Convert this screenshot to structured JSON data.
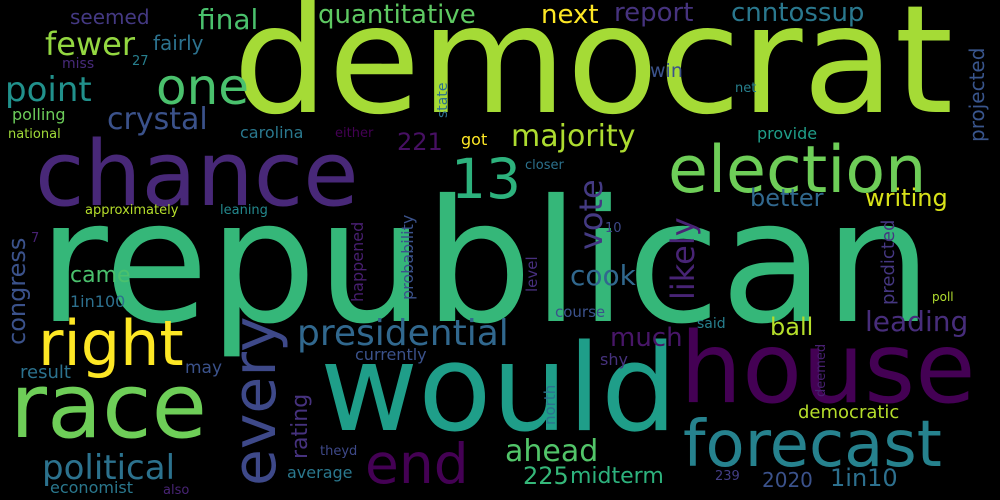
{
  "background": "#000000",
  "palette": "viridis",
  "words": [
    {
      "key": "democrat",
      "text": "democrat",
      "color": "#a5db36"
    },
    {
      "key": "republican",
      "text": "republican",
      "color": "#35b779"
    },
    {
      "key": "chance",
      "text": "chance",
      "color": "#482878"
    },
    {
      "key": "would",
      "text": "would",
      "color": "#1f9e89"
    },
    {
      "key": "house",
      "text": "house",
      "color": "#440154"
    },
    {
      "key": "race",
      "text": "race",
      "color": "#6ece58"
    },
    {
      "key": "election",
      "text": "election",
      "color": "#6ece58"
    },
    {
      "key": "forecast",
      "text": "forecast",
      "color": "#26828e"
    },
    {
      "key": "every",
      "text": "every",
      "color": "#3e4989"
    },
    {
      "key": "right",
      "text": "right",
      "color": "#fde725"
    },
    {
      "key": "one",
      "text": "one",
      "color": "#4ac16d"
    },
    {
      "key": "n13",
      "text": "13",
      "color": "#2db27d"
    },
    {
      "key": "end",
      "text": "end",
      "color": "#440154"
    },
    {
      "key": "presidential",
      "text": "presidential",
      "color": "#31688e"
    },
    {
      "key": "political",
      "text": "political",
      "color": "#2c728e"
    },
    {
      "key": "majority",
      "text": "majority",
      "color": "#addc30"
    },
    {
      "key": "point",
      "text": "point",
      "color": "#21918c"
    },
    {
      "key": "fewer",
      "text": "fewer",
      "color": "#93d741"
    },
    {
      "key": "crystal",
      "text": "crystal",
      "color": "#3b528b"
    },
    {
      "key": "ahead",
      "text": "ahead",
      "color": "#52c569"
    },
    {
      "key": "leading",
      "text": "leading",
      "color": "#472d7b"
    },
    {
      "key": "vote",
      "text": "vote",
      "color": "#443a83"
    },
    {
      "key": "likely",
      "text": "likely",
      "color": "#482475"
    },
    {
      "key": "quantitative",
      "text": "quantitative",
      "color": "#5ec962"
    },
    {
      "key": "next",
      "text": "next",
      "color": "#fde725"
    },
    {
      "key": "report",
      "text": "report",
      "color": "#46337e"
    },
    {
      "key": "cnntossup",
      "text": "cnntossup",
      "color": "#2a788e"
    },
    {
      "key": "final",
      "text": "final",
      "color": "#4ac16d"
    },
    {
      "key": "seemed",
      "text": "seemed",
      "color": "#443983"
    },
    {
      "key": "fairly",
      "text": "fairly",
      "color": "#2c728e"
    },
    {
      "key": "n27",
      "text": "27",
      "color": "#277f8e"
    },
    {
      "key": "miss",
      "text": "miss",
      "color": "#472a7a"
    },
    {
      "key": "polling",
      "text": "polling",
      "color": "#6ccd5a"
    },
    {
      "key": "national",
      "text": "national",
      "color": "#a0da39"
    },
    {
      "key": "carolina",
      "text": "carolina",
      "color": "#2a788e"
    },
    {
      "key": "either",
      "text": "either",
      "color": "#440154"
    },
    {
      "key": "state",
      "text": "state",
      "color": "#2d708e"
    },
    {
      "key": "projected",
      "text": "projected",
      "color": "#39558c"
    },
    {
      "key": "win",
      "text": "win",
      "color": "#3b528b"
    },
    {
      "key": "net",
      "text": "net",
      "color": "#27808e"
    },
    {
      "key": "provide",
      "text": "provide",
      "color": "#1f9e89"
    },
    {
      "key": "n221",
      "text": "221",
      "color": "#471063"
    },
    {
      "key": "got",
      "text": "got",
      "color": "#fde725"
    },
    {
      "key": "closer",
      "text": "closer",
      "color": "#2c728e"
    },
    {
      "key": "approximately",
      "text": "approximately",
      "color": "#b5de2b"
    },
    {
      "key": "leaning",
      "text": "leaning",
      "color": "#23898e"
    },
    {
      "key": "congress",
      "text": "congress",
      "color": "#3b528b"
    },
    {
      "key": "better",
      "text": "better",
      "color": "#31688e"
    },
    {
      "key": "writing",
      "text": "writing",
      "color": "#d8e219"
    },
    {
      "key": "n7",
      "text": "7",
      "color": "#482173"
    },
    {
      "key": "n10",
      "text": "10",
      "color": "#3e4989"
    },
    {
      "key": "probability",
      "text": "probability",
      "color": "#3b528b"
    },
    {
      "key": "happened",
      "text": "happened",
      "color": "#481f70"
    },
    {
      "key": "level",
      "text": "level",
      "color": "#472f7d"
    },
    {
      "key": "predicted",
      "text": "predicted",
      "color": "#453781"
    },
    {
      "key": "poll",
      "text": "poll",
      "color": "#b0dd2f"
    },
    {
      "key": "came",
      "text": "came",
      "color": "#4ac16d"
    },
    {
      "key": "cook",
      "text": "cook",
      "color": "#31688e"
    },
    {
      "key": "in1in100",
      "text": "1in100",
      "color": "#2d708e"
    },
    {
      "key": "rating",
      "text": "rating",
      "color": "#46327e"
    },
    {
      "key": "much",
      "text": "much",
      "color": "#481668"
    },
    {
      "key": "ball",
      "text": "ball",
      "color": "#b5de2b"
    },
    {
      "key": "course",
      "text": "course",
      "color": "#3b528b"
    },
    {
      "key": "said",
      "text": "said",
      "color": "#277f8e"
    },
    {
      "key": "currently",
      "text": "currently",
      "color": "#3b528b"
    },
    {
      "key": "shy",
      "text": "shy",
      "color": "#46327e"
    },
    {
      "key": "deemed",
      "text": "deemed",
      "color": "#482071"
    },
    {
      "key": "result",
      "text": "result",
      "color": "#2c728e"
    },
    {
      "key": "may",
      "text": "may",
      "color": "#3b528b"
    },
    {
      "key": "north",
      "text": "north",
      "color": "#2c728e"
    },
    {
      "key": "democratic",
      "text": "democratic",
      "color": "#b5de2b"
    },
    {
      "key": "theyd",
      "text": "theyd",
      "color": "#3e4989"
    },
    {
      "key": "average",
      "text": "average",
      "color": "#2a788e"
    },
    {
      "key": "n225",
      "text": "225",
      "color": "#35b779"
    },
    {
      "key": "midterm",
      "text": "midterm",
      "color": "#2db27d"
    },
    {
      "key": "n2020",
      "text": "2020",
      "color": "#3b528b"
    },
    {
      "key": "in1in10",
      "text": "1in10",
      "color": "#2d708e"
    },
    {
      "key": "n239",
      "text": "239",
      "color": "#433e85"
    },
    {
      "key": "economist",
      "text": "economist",
      "color": "#2a788e"
    },
    {
      "key": "also",
      "text": "also",
      "color": "#482475"
    }
  ]
}
